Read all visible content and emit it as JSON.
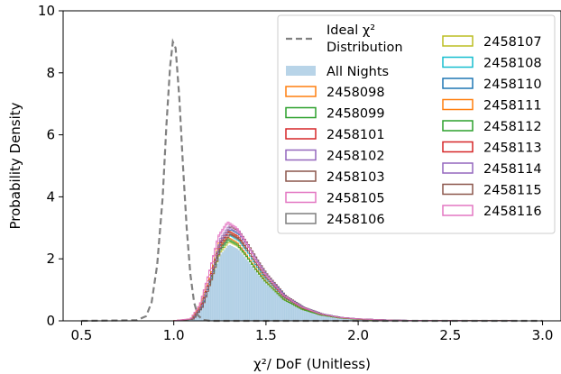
{
  "chart_data": {
    "type": "bar",
    "title": "",
    "xlabel": "χ²/ DoF (Unitless)",
    "ylabel": "Probability Density",
    "xlim": [
      0.4,
      3.1
    ],
    "ylim": [
      0,
      10
    ],
    "xticks": [
      "0.5",
      "1.0",
      "1.5",
      "2.0",
      "2.5",
      "3.0"
    ],
    "yticks": [
      "0",
      "2",
      "4",
      "6",
      "8",
      "10"
    ],
    "grid": false,
    "legend_position": "top-right",
    "ideal": {
      "name": "Ideal χ² Distribution",
      "name_line1": "Ideal χ²",
      "name_line2": "Distribution",
      "color": "#808080",
      "style": "dashed",
      "points": [
        [
          0.5,
          0
        ],
        [
          0.8,
          0.02
        ],
        [
          0.85,
          0.15
        ],
        [
          0.88,
          0.6
        ],
        [
          0.91,
          1.8
        ],
        [
          0.94,
          4.0
        ],
        [
          0.96,
          6.3
        ],
        [
          0.98,
          8.2
        ],
        [
          0.995,
          9.0
        ],
        [
          1.01,
          8.8
        ],
        [
          1.03,
          7.2
        ],
        [
          1.05,
          5.0
        ],
        [
          1.07,
          3.0
        ],
        [
          1.09,
          1.5
        ],
        [
          1.11,
          0.6
        ],
        [
          1.13,
          0.18
        ],
        [
          1.16,
          0.03
        ],
        [
          1.2,
          0
        ],
        [
          3.0,
          0
        ]
      ]
    },
    "all_nights": {
      "name": "All Nights",
      "color": "#b8d4e8",
      "bin_width": 0.01,
      "points": [
        [
          1.0,
          0
        ],
        [
          1.1,
          0.05
        ],
        [
          1.15,
          0.4
        ],
        [
          1.2,
          1.2
        ],
        [
          1.25,
          2.1
        ],
        [
          1.3,
          2.45
        ],
        [
          1.35,
          2.3
        ],
        [
          1.4,
          1.95
        ],
        [
          1.45,
          1.55
        ],
        [
          1.5,
          1.2
        ],
        [
          1.6,
          0.65
        ],
        [
          1.7,
          0.35
        ],
        [
          1.8,
          0.18
        ],
        [
          1.9,
          0.09
        ],
        [
          2.0,
          0.05
        ],
        [
          2.2,
          0.015
        ],
        [
          2.5,
          0.005
        ],
        [
          3.0,
          0
        ]
      ]
    },
    "series": [
      {
        "name": "2458098",
        "color": "#ff7f0e",
        "peak": 2.9
      },
      {
        "name": "2458099",
        "color": "#2ca02c",
        "peak": 2.65
      },
      {
        "name": "2458101",
        "color": "#d62728",
        "peak": 2.8
      },
      {
        "name": "2458102",
        "color": "#9467bd",
        "peak": 3.1
      },
      {
        "name": "2458103",
        "color": "#8c564b",
        "peak": 3.05
      },
      {
        "name": "2458105",
        "color": "#e377c2",
        "peak": 3.2
      },
      {
        "name": "2458106",
        "color": "#7f7f7f",
        "peak": 2.85
      },
      {
        "name": "2458107",
        "color": "#bcbd22",
        "peak": 2.55
      },
      {
        "name": "2458108",
        "color": "#17becf",
        "peak": 2.75
      },
      {
        "name": "2458110",
        "color": "#1f77b4",
        "peak": 2.95
      },
      {
        "name": "2458111",
        "color": "#ff7f0e",
        "peak": 2.7
      },
      {
        "name": "2458112",
        "color": "#2ca02c",
        "peak": 2.6
      },
      {
        "name": "2458113",
        "color": "#d62728",
        "peak": 2.9
      },
      {
        "name": "2458114",
        "color": "#9467bd",
        "peak": 3.0
      },
      {
        "name": "2458115",
        "color": "#8c564b",
        "peak": 2.8
      },
      {
        "name": "2458116",
        "color": "#e377c2",
        "peak": 3.15
      }
    ]
  }
}
